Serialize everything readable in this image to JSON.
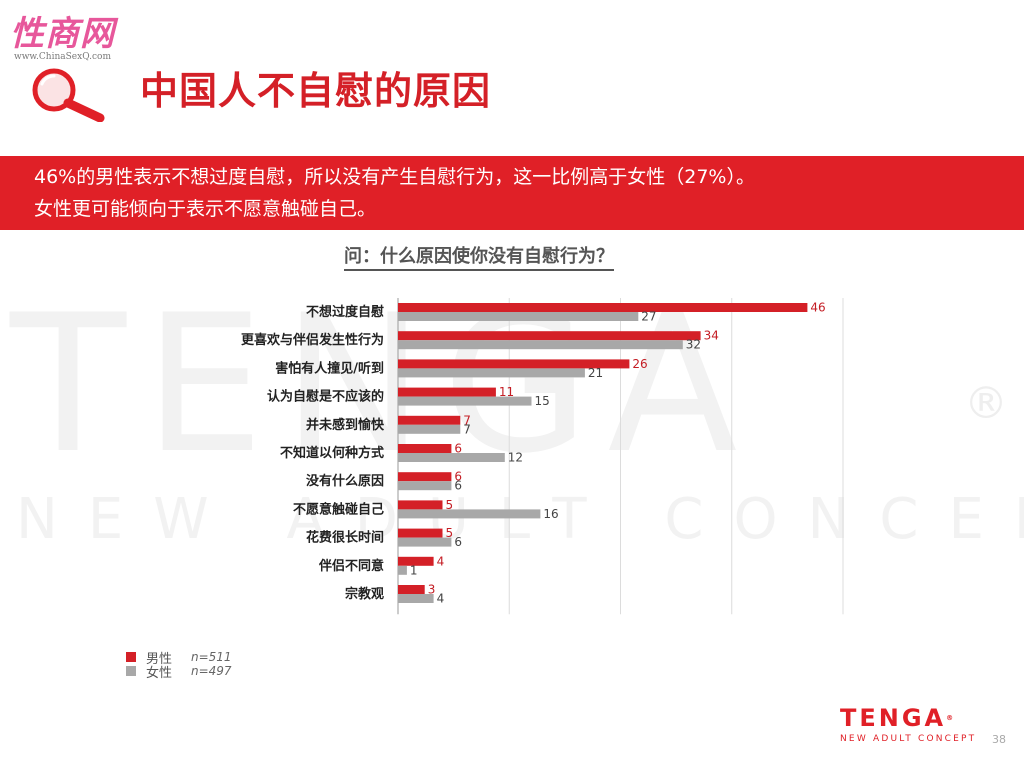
{
  "header": {
    "site_logo_text": "性商网",
    "site_url": "www.ChinaSexQ.com",
    "title": "中国人不自慰的原因"
  },
  "banner": {
    "line1": "46%的男性表示不想过度自慰，所以没有产生自慰行为，这一比例高于女性（27%）。",
    "line2": "女性更可能倾向于表示不愿意触碰自己。"
  },
  "question": "问：什么原因使你没有自慰行为？",
  "watermark": {
    "word": "TENGA",
    "tagline": "NEW ADULT CONCEPT",
    "registered": "®"
  },
  "chart_data": {
    "type": "bar",
    "orientation": "horizontal",
    "categories": [
      "不想过度自慰",
      "更喜欢与伴侣发生性行为",
      "害怕有人撞见/听到",
      "认为自慰是不应该的",
      "并未感到愉快",
      "不知道以何种方式",
      "没有什么原因",
      "不愿意触碰自己",
      "花费很长时间",
      "伴侣不同意",
      "宗教观"
    ],
    "series": [
      {
        "name": "男性",
        "n": "n=511",
        "color": "#d42027",
        "values": [
          46,
          34,
          26,
          11,
          7,
          6,
          6,
          5,
          5,
          4,
          3
        ]
      },
      {
        "name": "女性",
        "n": "n=497",
        "color": "#a8a8a8",
        "values": [
          27,
          32,
          21,
          15,
          7,
          12,
          6,
          16,
          6,
          1,
          4
        ]
      }
    ],
    "xlim": [
      0,
      50
    ],
    "grid": true,
    "legend_position": "bottom-left"
  },
  "footer": {
    "brand_name": "TENGA",
    "brand_reg": "®",
    "brand_tagline": "NEW ADULT CONCEPT",
    "page_number": "38"
  }
}
